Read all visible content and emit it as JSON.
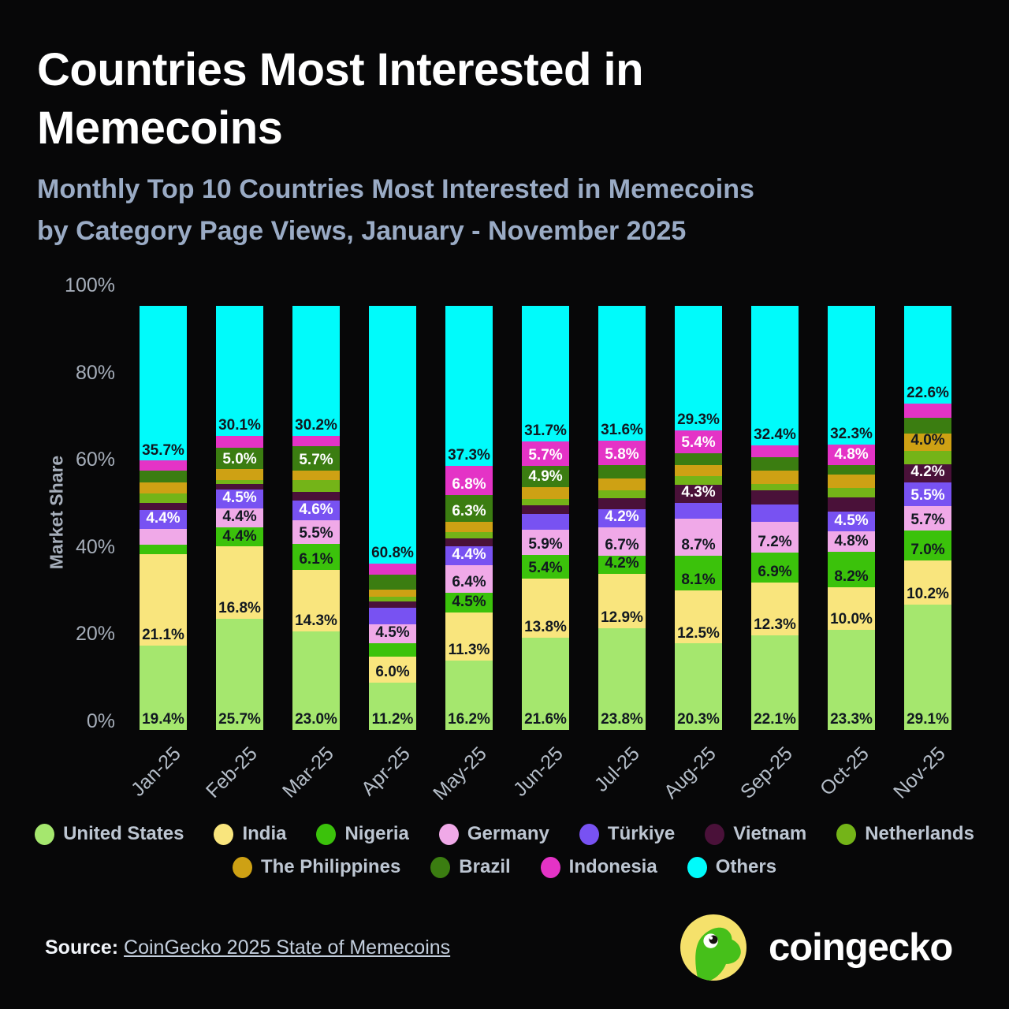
{
  "title": {
    "line1": "Countries Most Interested in",
    "line2": "Memecoins"
  },
  "subtitle": {
    "line1": "Monthly Top 10 Countries Most Interested in Memecoins",
    "line2": "by Category Page Views, January - November 2025"
  },
  "y_axis": {
    "title": "Market Share",
    "ticks": [
      "0%",
      "20%",
      "40%",
      "60%",
      "80%",
      "100%"
    ],
    "tick_values": [
      0,
      20,
      40,
      60,
      80,
      100
    ]
  },
  "legend": {
    "row1": [
      "United States",
      "India",
      "Nigeria",
      "Germany",
      "Türkiye",
      "Vietnam",
      "Netherlands"
    ],
    "row2": [
      "The Philippines",
      "Brazil",
      "Indonesia",
      "Others"
    ]
  },
  "source": {
    "prefix": "Source:",
    "link_text": "CoinGecko 2025 State of Memecoins"
  },
  "brand": {
    "name": "coingecko"
  },
  "colors": {
    "background": "#070708",
    "title_text": "#ffffff",
    "subtitle_text": "#9aabc5",
    "axis_text": "#a6aeba",
    "dark_label": "#111820",
    "light_label": "#ffffff"
  },
  "chart_data": {
    "type": "bar",
    "variant": "stacked-100-percent",
    "title": "Monthly Top 10 Countries Most Interested in Memecoins by Category Page Views, January - November 2025",
    "xlabel": "",
    "ylabel": "Market Share",
    "ylim": [
      0,
      100
    ],
    "grid": false,
    "legend_position": "bottom",
    "note": "values without a label string are estimated from segment heights; labeled values are exact as printed on the chart",
    "categories": [
      "Jan-25",
      "Feb-25",
      "Mar-25",
      "Apr-25",
      "May-25",
      "Jun-25",
      "Jul-25",
      "Aug-25",
      "Sep-25",
      "Oct-25",
      "Nov-25"
    ],
    "series_names": [
      "United States",
      "India",
      "Nigeria",
      "Germany",
      "Türkiye",
      "Vietnam",
      "Netherlands",
      "The Philippines",
      "Brazil",
      "Indonesia",
      "Others"
    ],
    "series_colors": [
      "#a5e76e",
      "#f9e57d",
      "#3bc20b",
      "#f0a9e8",
      "#7852f2",
      "#4a1139",
      "#74b418",
      "#cea114",
      "#3b7d11",
      "#e433c6",
      "#00fbfb"
    ],
    "series_label_is_dark_text": [
      true,
      true,
      true,
      true,
      false,
      false,
      true,
      true,
      false,
      false,
      true
    ],
    "months": [
      {
        "month": "Jan-25",
        "values": [
          19.4,
          21.1,
          2.2,
          3.7,
          4.4,
          1.5,
          2.2,
          2.5,
          2.8,
          2.3,
          35.7
        ],
        "labels": [
          "19.4%",
          "21.1%",
          "",
          "",
          "4.4%",
          "",
          "",
          "",
          "",
          "",
          "35.7%"
        ]
      },
      {
        "month": "Feb-25",
        "values": [
          25.7,
          16.8,
          4.4,
          4.4,
          4.5,
          1.2,
          0.9,
          2.5,
          5.0,
          2.8,
          30.1
        ],
        "labels": [
          "25.7%",
          "16.8%",
          "4.4%",
          "4.4%",
          "4.5%",
          "",
          "",
          "",
          "5.0%",
          "",
          "30.1%"
        ]
      },
      {
        "month": "Mar-25",
        "values": [
          23.0,
          14.3,
          6.1,
          5.5,
          4.6,
          1.9,
          2.8,
          2.2,
          5.7,
          2.5,
          30.2
        ],
        "labels": [
          "23.0%",
          "14.3%",
          "6.1%",
          "5.5%",
          "4.6%",
          "",
          "",
          "",
          "5.7%",
          "",
          "30.2%"
        ]
      },
      {
        "month": "Apr-25",
        "values": [
          11.2,
          6.0,
          3.3,
          4.5,
          3.9,
          1.4,
          1.2,
          1.6,
          3.5,
          2.6,
          60.8
        ],
        "labels": [
          "11.2%",
          "6.0%",
          "",
          "4.5%",
          "",
          "",
          "",
          "",
          "",
          "",
          "60.8%"
        ]
      },
      {
        "month": "May-25",
        "values": [
          16.2,
          11.3,
          4.5,
          6.4,
          4.4,
          1.9,
          1.5,
          2.4,
          6.3,
          6.8,
          37.3
        ],
        "labels": [
          "16.2%",
          "11.3%",
          "4.5%",
          "6.4%",
          "4.4%",
          "",
          "",
          "",
          "6.3%",
          "6.8%",
          "37.3%"
        ]
      },
      {
        "month": "Jun-25",
        "values": [
          21.6,
          13.8,
          5.4,
          5.9,
          3.8,
          1.9,
          1.5,
          2.8,
          4.9,
          5.7,
          31.7
        ],
        "labels": [
          "21.6%",
          "13.8%",
          "5.4%",
          "5.9%",
          "",
          "",
          "",
          "",
          "4.9%",
          "5.7%",
          "31.7%"
        ]
      },
      {
        "month": "Jul-25",
        "values": [
          23.8,
          12.9,
          4.2,
          6.7,
          4.2,
          2.5,
          1.9,
          2.8,
          3.1,
          5.8,
          31.6
        ],
        "labels": [
          "23.8%",
          "12.9%",
          "4.2%",
          "6.7%",
          "4.2%",
          "",
          "",
          "",
          "",
          "5.8%",
          "31.6%"
        ]
      },
      {
        "month": "Aug-25",
        "values": [
          20.3,
          12.5,
          8.1,
          8.7,
          3.8,
          4.3,
          2.0,
          2.5,
          2.8,
          5.4,
          29.3
        ],
        "labels": [
          "20.3%",
          "12.5%",
          "8.1%",
          "8.7%",
          "",
          "4.3%",
          "",
          "",
          "",
          "5.4%",
          "29.3%"
        ]
      },
      {
        "month": "Sep-25",
        "values": [
          22.1,
          12.3,
          6.9,
          7.2,
          3.9,
          3.4,
          1.5,
          3.1,
          3.1,
          2.8,
          32.4
        ],
        "labels": [
          "22.1%",
          "12.3%",
          "6.9%",
          "7.2%",
          "",
          "",
          "",
          "",
          "",
          "",
          "32.4%"
        ]
      },
      {
        "month": "Oct-25",
        "values": [
          23.3,
          10.0,
          8.2,
          4.8,
          4.5,
          3.4,
          2.2,
          3.1,
          2.2,
          4.8,
          32.3
        ],
        "labels": [
          "23.3%",
          "10.0%",
          "8.2%",
          "4.8%",
          "4.5%",
          "",
          "",
          "",
          "",
          "4.8%",
          "32.3%"
        ]
      },
      {
        "month": "Nov-25",
        "values": [
          29.1,
          10.2,
          7.0,
          5.7,
          5.5,
          4.2,
          3.2,
          4.0,
          3.6,
          3.4,
          22.6
        ],
        "labels": [
          "29.1%",
          "10.2%",
          "7.0%",
          "5.7%",
          "5.5%",
          "4.2%",
          "",
          "4.0%",
          "",
          "",
          "22.6%"
        ]
      }
    ]
  }
}
